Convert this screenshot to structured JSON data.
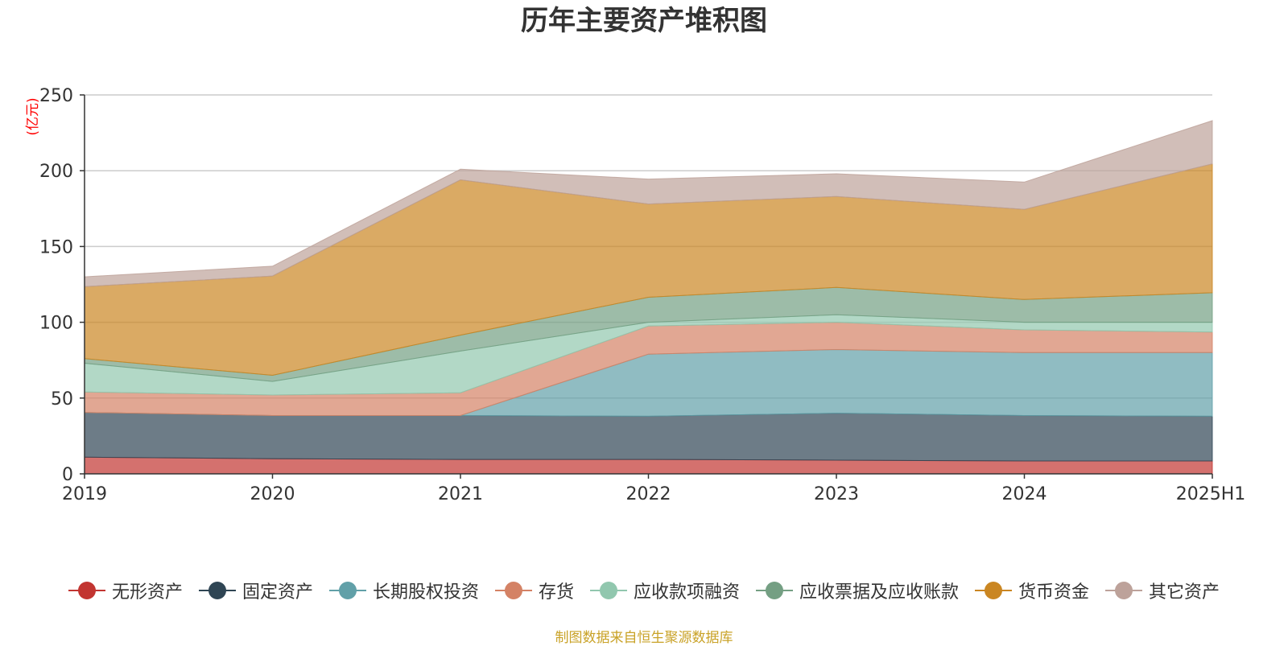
{
  "chart_data": {
    "type": "area",
    "stacked": true,
    "title": "历年主要资产堆积图",
    "ylabel": "(亿元)",
    "ylim": [
      0,
      250
    ],
    "yticks": [
      0,
      50,
      100,
      150,
      200,
      250
    ],
    "categories": [
      "2019",
      "2020",
      "2021",
      "2022",
      "2023",
      "2024",
      "2025H1"
    ],
    "grid": true,
    "legend_position": "bottom",
    "series": [
      {
        "name": "无形资产",
        "color": "#c23531",
        "values": [
          11,
          10,
          9.5,
          9.5,
          9,
          8.5,
          8.5
        ]
      },
      {
        "name": "固定资产",
        "color": "#2f4554",
        "values": [
          29.5,
          28.5,
          29,
          28.5,
          31,
          30,
          29.5
        ]
      },
      {
        "name": "长期股权投资",
        "color": "#61a0a8",
        "values": [
          0,
          0,
          0,
          41,
          42,
          41.5,
          42
        ]
      },
      {
        "name": "存货",
        "color": "#d48265",
        "values": [
          13.5,
          13.5,
          15,
          18.5,
          18,
          15,
          13.5
        ]
      },
      {
        "name": "应收款项融资",
        "color": "#91c7ae",
        "values": [
          19,
          9,
          27.5,
          2.5,
          5,
          5,
          6.5
        ]
      },
      {
        "name": "应收票据及应收账款",
        "color": "#749f83",
        "values": [
          3,
          4,
          10.5,
          16.5,
          18,
          15,
          19.5
        ]
      },
      {
        "name": "货币资金",
        "color": "#ca8622",
        "values": [
          47.5,
          65.5,
          102.5,
          61.5,
          60,
          59.5,
          85
        ]
      },
      {
        "name": "其它资产",
        "color": "#bda29a",
        "values": [
          6.5,
          6.5,
          7,
          16.5,
          15,
          18,
          28.5
        ]
      }
    ]
  },
  "source_text": "制图数据来自恒生聚源数据库",
  "colors": {
    "ylabel": "#ff0000",
    "source": "#c9a227",
    "axis": "#333333",
    "grid": "#cccccc"
  }
}
